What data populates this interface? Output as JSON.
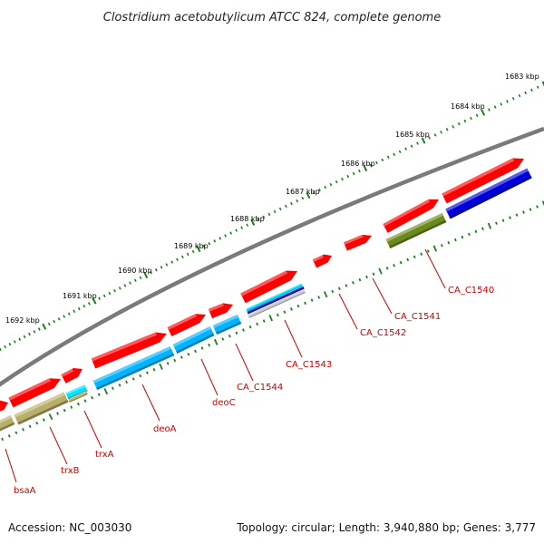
{
  "title": "Clostridium acetobutylicum ATCC 824, complete genome",
  "footer": {
    "accession": "Accession: NC_003030",
    "summary": "Topology: circular; Length: 3,940,880 bp; Genes: 3,777"
  },
  "colors": {
    "backbone": "#808080",
    "ruler_ticks": "#1a7f1a",
    "feature_ticks": "#1a7f1a",
    "label_text": "#cc0000",
    "leader_line": "#cc0000",
    "cds": "#ff0000",
    "gene_cyan": "#00b4ff",
    "gene_khaki": "#b8b068",
    "gene_olive": "#6b8a1e",
    "gene_blue": "#0000dd",
    "rna_cyan": "#00e5ff",
    "rna_blue": "#1a1ab0",
    "rna_grey": "#c8c8c8"
  },
  "ruler_labels": [
    "1683 kbp",
    "1684 kbp",
    "1685 kbp",
    "1686 kbp",
    "1687 kbp",
    "1688 kbp",
    "1689 kbp",
    "1690 kbp",
    "1691 kbp",
    "1692 kbp"
  ],
  "gene_labels": [
    "CA_C1540",
    "CA_C1541",
    "CA_C1542",
    "CA_C1543",
    "CA_C1544",
    "deoC",
    "deoA",
    "trxA",
    "trxB",
    "bsaA"
  ]
}
